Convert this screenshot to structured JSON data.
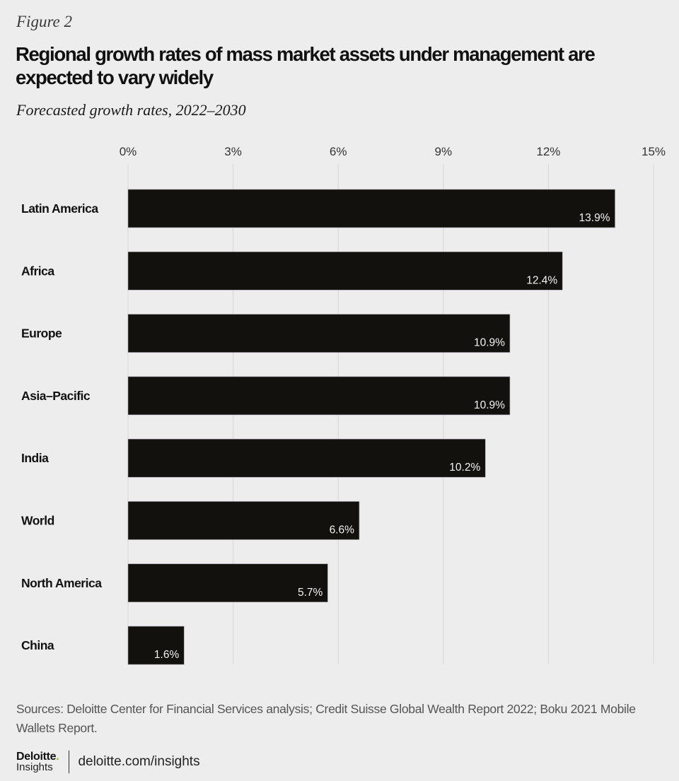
{
  "figure_label": "Figure 2",
  "chart_data": {
    "type": "bar",
    "orientation": "horizontal",
    "title": "Regional growth rates of mass market assets under management are expected to vary widely",
    "subtitle": "Forecasted growth rates, 2022–2030",
    "xlabel": "",
    "ylabel": "",
    "xlim": [
      0,
      15
    ],
    "x_ticks": [
      0,
      3,
      6,
      9,
      12,
      15
    ],
    "x_tick_labels": [
      "0%",
      "3%",
      "6%",
      "9%",
      "12%",
      "15%"
    ],
    "x_axis_position": "top",
    "grid": true,
    "categories": [
      "Latin America",
      "Africa",
      "Europe",
      "Asia–Pacific",
      "India",
      "World",
      "North America",
      "China"
    ],
    "values": [
      13.9,
      12.4,
      10.9,
      10.9,
      10.2,
      6.6,
      5.7,
      1.6
    ],
    "value_labels": [
      "13.9%",
      "12.4%",
      "10.9%",
      "10.9%",
      "10.2%",
      "6.6%",
      "5.7%",
      "1.6%"
    ],
    "unit": "%",
    "bar_color": "#12110e",
    "value_label_color": "#f2f2f2",
    "grid_color": "#d6d6d6"
  },
  "sources": "Sources: Deloitte Center for Financial Services analysis; Credit Suisse Global Wealth Report 2022; Boku 2021 Mobile Wallets Report.",
  "footer": {
    "logo_brand": "Deloitte",
    "logo_dot": ".",
    "logo_sub": "Insights",
    "url": "deloitte.com/insights"
  }
}
